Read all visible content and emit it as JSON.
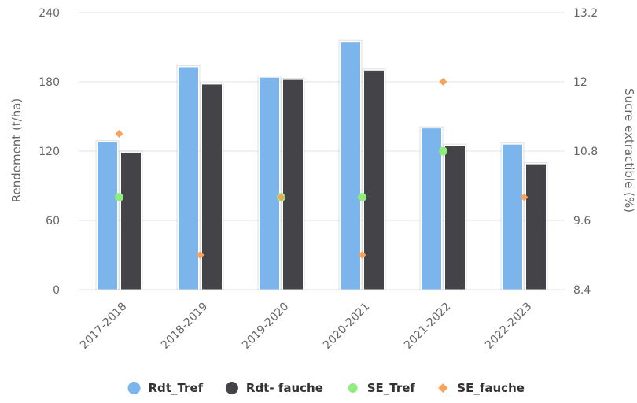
{
  "chart_data": {
    "type": "bar",
    "categories": [
      "2017-2018",
      "2018-2019",
      "2019-2020",
      "2020-2021",
      "2021-2022",
      "2022-2023"
    ],
    "series": [
      {
        "name": "Rdt_Tref",
        "type": "bar",
        "axis": "left",
        "color": "#7cb5ec",
        "values": [
          128,
          193,
          184,
          215,
          140,
          126
        ]
      },
      {
        "name": "Rdt- fauche",
        "type": "bar",
        "axis": "left",
        "color": "#434348",
        "values": [
          119,
          178,
          182,
          190,
          125,
          109
        ]
      },
      {
        "name": "SE_Tref",
        "type": "scatter",
        "axis": "right",
        "marker": "circle",
        "color": "#90ed7d",
        "values": [
          10.0,
          null,
          10.0,
          10.0,
          10.8,
          null
        ]
      },
      {
        "name": "SE_fauche",
        "type": "scatter",
        "axis": "right",
        "marker": "diamond",
        "color": "#f7a35c",
        "values": [
          11.1,
          9.0,
          10.0,
          9.0,
          12.0,
          10.0
        ]
      }
    ],
    "ylabel": "Rendement (t/ha)",
    "ylabel_right": "Sucre extractible (%)",
    "ylim": [
      0,
      240
    ],
    "yticks": [
      "0",
      "60",
      "120",
      "180",
      "240"
    ],
    "ylim_right": [
      8.4,
      13.2
    ],
    "yticks_right": [
      "8.4",
      "9.6",
      "10.8",
      "12",
      "13.2"
    ],
    "grid": true,
    "legend": "bottom"
  }
}
